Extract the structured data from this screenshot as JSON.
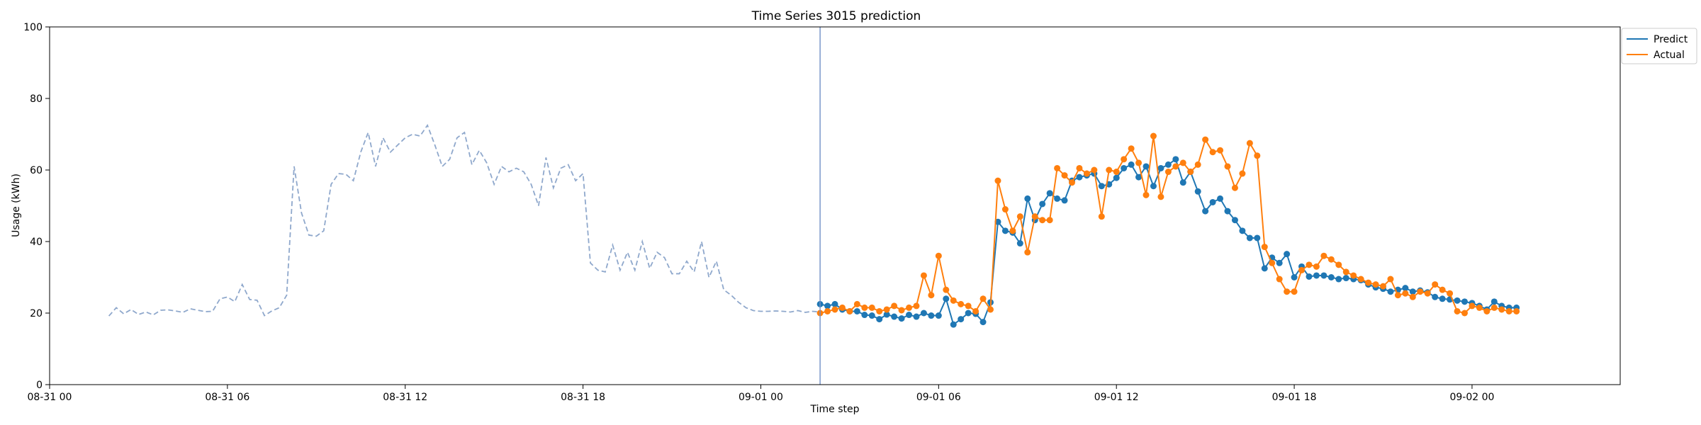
{
  "chart_data": {
    "type": "line",
    "title": "Time Series 3015 prediction",
    "xlabel": "Time step",
    "ylabel": "Usage (kWh)",
    "ylim": [
      0,
      100
    ],
    "xlim": [
      "2019-08-31 00:00",
      "2019-09-02 05:00"
    ],
    "x_ticks": [
      "08-31 00",
      "08-31 06",
      "08-31 12",
      "08-31 18",
      "09-01 00",
      "09-01 06",
      "09-01 12",
      "09-01 18",
      "09-02 00"
    ],
    "y_ticks": [
      0,
      20,
      40,
      60,
      80,
      100
    ],
    "grid": false,
    "legend_position": "upper-right-outside",
    "forecast_start": "2019-09-01 02:00",
    "colors": {
      "history": "#8fa8cc",
      "predict": "#1f77b4",
      "actual": "#ff7f0e",
      "forecast_line": "#6f8fc6"
    },
    "history": {
      "start": "2019-08-31 02:00",
      "interval_minutes": 15,
      "values": [
        19.2,
        21.5,
        19.8,
        21.0,
        19.6,
        20.3,
        19.5,
        20.8,
        20.9,
        20.6,
        20.2,
        21.2,
        20.8,
        20.4,
        20.5,
        24.0,
        24.5,
        23.2,
        28.0,
        23.8,
        23.6,
        19.3,
        20.6,
        21.5,
        25.0,
        61.0,
        48.0,
        41.8,
        41.5,
        43.0,
        56.0,
        59.0,
        58.8,
        57.0,
        65.0,
        70.5,
        61.0,
        69.0,
        65.0,
        67.0,
        69.0,
        70.0,
        69.5,
        72.5,
        67.0,
        61.0,
        63.0,
        69.0,
        70.5,
        61.5,
        65.5,
        62.0,
        56.0,
        61.0,
        59.5,
        60.5,
        59.5,
        56.0,
        50.0,
        63.5,
        55.0,
        60.5,
        61.5,
        57.0,
        59.0,
        34.0,
        32.0,
        31.5,
        39.0,
        32.0,
        37.0,
        32.0,
        40.0,
        32.5,
        37.0,
        35.5,
        31.0,
        31.0,
        34.5,
        31.5,
        40.0,
        30.0,
        34.5,
        26.5,
        25.0,
        23.0,
        21.5,
        20.7,
        20.5,
        20.5,
        20.6,
        20.5,
        20.3,
        20.7,
        20.2,
        20.5,
        20.3
      ]
    },
    "series": [
      {
        "name": "Predict",
        "start": "2019-09-01 02:00",
        "interval_minutes": 15,
        "values": [
          22.5,
          22.0,
          22.5,
          21.0,
          20.5,
          20.5,
          19.5,
          19.3,
          18.3,
          19.6,
          19.0,
          18.5,
          19.5,
          19.0,
          20.0,
          19.3,
          19.3,
          24.0,
          16.8,
          18.3,
          20.0,
          19.8,
          17.5,
          23.0,
          45.5,
          43.0,
          42.5,
          39.5,
          52.0,
          46.0,
          50.5,
          53.5,
          52.0,
          51.5,
          57.0,
          58.0,
          58.5,
          59.0,
          55.5,
          56.0,
          57.8,
          60.5,
          61.5,
          58.0,
          61.0,
          55.5,
          60.5,
          61.5,
          63.0,
          56.5,
          59.5,
          54.0,
          48.5,
          51.0,
          52.0,
          48.5,
          46.0,
          43.0,
          41.0,
          41.0,
          32.5,
          35.5,
          34.0,
          36.5,
          30.0,
          33.0,
          30.2,
          30.5,
          30.5,
          30.0,
          29.5,
          29.8,
          29.5,
          29.2,
          28.0,
          27.2,
          26.8,
          26.0,
          26.5,
          27.0,
          26.0,
          26.3,
          25.8,
          24.5,
          24.0,
          23.8,
          23.5,
          23.2,
          22.8,
          22.0,
          21.0,
          23.2,
          22.0,
          21.5,
          21.5
        ]
      },
      {
        "name": "Actual",
        "start": "2019-09-01 02:00",
        "interval_minutes": 15,
        "values": [
          20.0,
          20.5,
          21.0,
          21.5,
          20.5,
          22.5,
          21.5,
          21.5,
          20.5,
          21.0,
          22.0,
          20.8,
          21.5,
          22.0,
          30.5,
          25.0,
          36.0,
          26.5,
          23.5,
          22.5,
          22.0,
          20.5,
          24.0,
          21.0,
          57.0,
          49.0,
          43.0,
          47.0,
          37.0,
          47.0,
          46.0,
          46.0,
          60.5,
          58.5,
          56.5,
          60.5,
          59.0,
          60.0,
          47.0,
          60.0,
          59.5,
          63.0,
          66.0,
          62.0,
          53.0,
          69.5,
          52.5,
          59.5,
          61.0,
          62.0,
          59.5,
          61.5,
          68.5,
          65.0,
          65.5,
          61.0,
          55.0,
          59.0,
          67.5,
          64.0,
          38.5,
          34.0,
          29.5,
          26.0,
          26.0,
          32.0,
          33.5,
          33.0,
          36.0,
          35.0,
          33.5,
          31.5,
          30.5,
          29.5,
          28.5,
          28.0,
          27.5,
          29.5,
          25.0,
          25.5,
          24.5,
          26.0,
          25.5,
          28.0,
          26.5,
          25.5,
          20.5,
          20.0,
          22.0,
          21.5,
          20.5,
          21.5,
          21.0,
          20.5,
          20.5
        ]
      }
    ]
  }
}
